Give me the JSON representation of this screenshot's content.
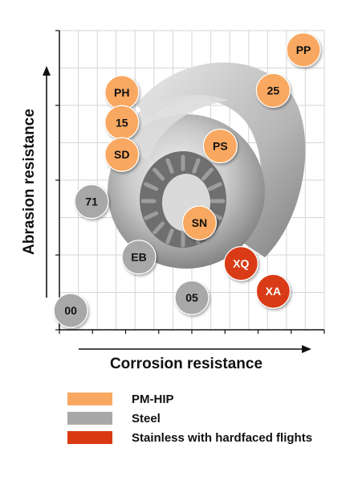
{
  "colors": {
    "pm_hip": "#F8A860",
    "steel": "#A8A8A8",
    "stainless": "#D93A12",
    "grid": "#d6d6d6",
    "axis": "#111111"
  },
  "chart_data": {
    "type": "scatter",
    "xlabel": "Corrosion resistance",
    "ylabel": "Abrasion resistance",
    "xlim": [
      0,
      14
    ],
    "ylim": [
      0,
      14
    ],
    "grid": true,
    "background_image": "screw-element-photo",
    "series": [
      {
        "name": "PM-HIP",
        "color": "#F8A860",
        "points": [
          {
            "label": "PP",
            "x": 12.9,
            "y": 13.1
          },
          {
            "label": "PH",
            "x": 3.3,
            "y": 11.1
          },
          {
            "label": "25",
            "x": 11.3,
            "y": 11.2
          },
          {
            "label": "15",
            "x": 3.3,
            "y": 9.7
          },
          {
            "label": "SD",
            "x": 3.3,
            "y": 8.2
          },
          {
            "label": "PS",
            "x": 8.5,
            "y": 8.6
          },
          {
            "label": "SN",
            "x": 7.4,
            "y": 5.0
          }
        ]
      },
      {
        "name": "Steel",
        "color": "#A8A8A8",
        "points": [
          {
            "label": "71",
            "x": 1.7,
            "y": 6.0
          },
          {
            "label": "EB",
            "x": 4.2,
            "y": 3.4
          },
          {
            "label": "05",
            "x": 7.0,
            "y": 1.5
          },
          {
            "label": "00",
            "x": 0.6,
            "y": 0.9
          }
        ]
      },
      {
        "name": "Stainless with hardfaced flights",
        "color": "#D93A12",
        "points": [
          {
            "label": "XQ",
            "x": 9.6,
            "y": 3.1
          },
          {
            "label": "XA",
            "x": 11.3,
            "y": 1.8
          }
        ]
      }
    ]
  },
  "legend": {
    "items": [
      {
        "label": "PM-HIP",
        "color": "#F8A860"
      },
      {
        "label": "Steel",
        "color": "#A8A8A8"
      },
      {
        "label": "Stainless with hardfaced flights",
        "color": "#D93A12"
      }
    ]
  }
}
